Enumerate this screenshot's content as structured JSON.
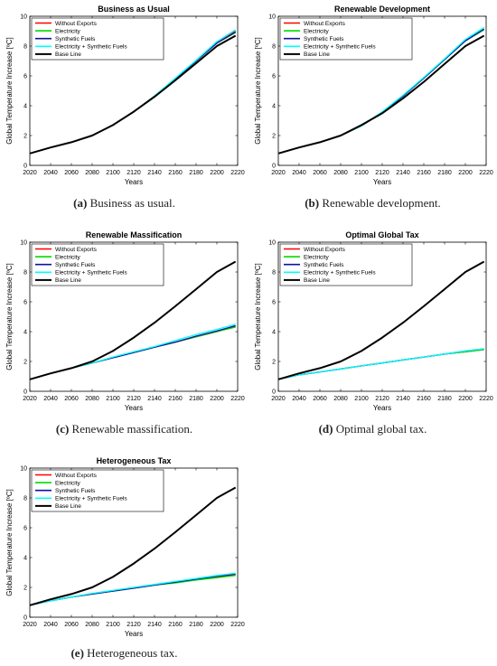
{
  "chart_data": [
    {
      "type": "line",
      "title": "Business as Usual",
      "xlabel": "Years",
      "ylabel": "Global Temperature Increase [ºC]",
      "xlim": [
        2020,
        2220
      ],
      "ylim": [
        0,
        10
      ],
      "xticks": [
        2020,
        2040,
        2060,
        2080,
        2100,
        2120,
        2140,
        2160,
        2180,
        2200,
        2220
      ],
      "yticks": [
        0,
        2,
        4,
        6,
        8,
        10
      ],
      "grid": false,
      "legend": "top-left",
      "caption_letter": "(a)",
      "caption_text": " Business as usual.",
      "x": [
        2020,
        2040,
        2060,
        2080,
        2100,
        2120,
        2140,
        2160,
        2180,
        2200,
        2218
      ],
      "series": [
        {
          "name": "Without Exports",
          "color": "#ff0000",
          "values": [
            0.8,
            1.2,
            1.55,
            2.0,
            2.7,
            3.6,
            4.65,
            5.8,
            7.0,
            8.2,
            9.0
          ]
        },
        {
          "name": "Electricity",
          "color": "#00dd00",
          "values": [
            0.8,
            1.2,
            1.55,
            2.0,
            2.7,
            3.6,
            4.65,
            5.8,
            7.0,
            8.2,
            8.9
          ]
        },
        {
          "name": "Synthetic Fuels",
          "color": "#1010a0",
          "values": [
            0.8,
            1.2,
            1.55,
            2.0,
            2.7,
            3.6,
            4.65,
            5.8,
            7.0,
            8.2,
            8.95
          ]
        },
        {
          "name": "Electricity + Synthetic Fuels",
          "color": "#00ffff",
          "values": [
            0.8,
            1.2,
            1.55,
            2.0,
            2.7,
            3.6,
            4.65,
            5.85,
            7.05,
            8.3,
            9.1
          ]
        },
        {
          "name": "Base Line",
          "color": "#000000",
          "values": [
            0.8,
            1.2,
            1.55,
            2.0,
            2.7,
            3.6,
            4.6,
            5.7,
            6.85,
            8.0,
            8.7
          ]
        }
      ]
    },
    {
      "type": "line",
      "title": "Renewable Development",
      "xlabel": "Years",
      "ylabel": "Global Temperature Increase [ºC]",
      "xlim": [
        2020,
        2220
      ],
      "ylim": [
        0,
        10
      ],
      "xticks": [
        2020,
        2040,
        2060,
        2080,
        2100,
        2120,
        2140,
        2160,
        2180,
        2200,
        2220
      ],
      "yticks": [
        0,
        2,
        4,
        6,
        8,
        10
      ],
      "grid": false,
      "legend": "top-left",
      "caption_letter": "(b)",
      "caption_text": " Renewable development.",
      "x": [
        2020,
        2040,
        2060,
        2080,
        2100,
        2120,
        2140,
        2160,
        2180,
        2200,
        2218
      ],
      "series": [
        {
          "name": "Without Exports",
          "color": "#ff0000",
          "values": [
            0.8,
            1.2,
            1.55,
            2.0,
            2.65,
            3.55,
            4.65,
            5.85,
            7.1,
            8.35,
            9.1
          ]
        },
        {
          "name": "Electricity",
          "color": "#00dd00",
          "values": [
            0.8,
            1.2,
            1.55,
            2.0,
            2.65,
            3.55,
            4.65,
            5.85,
            7.1,
            8.35,
            9.1
          ]
        },
        {
          "name": "Synthetic Fuels",
          "color": "#1010a0",
          "values": [
            0.8,
            1.2,
            1.55,
            2.0,
            2.65,
            3.55,
            4.65,
            5.85,
            7.1,
            8.35,
            9.15
          ]
        },
        {
          "name": "Electricity + Synthetic Fuels",
          "color": "#00ffff",
          "values": [
            0.8,
            1.2,
            1.55,
            2.0,
            2.65,
            3.6,
            4.7,
            5.9,
            7.15,
            8.45,
            9.25
          ]
        },
        {
          "name": "Base Line",
          "color": "#000000",
          "values": [
            0.8,
            1.2,
            1.55,
            2.0,
            2.7,
            3.5,
            4.5,
            5.6,
            6.8,
            8.0,
            8.7
          ]
        }
      ]
    },
    {
      "type": "line",
      "title": "Renewable Massification",
      "xlabel": "Years",
      "ylabel": "Global Temperature Increase [ºC]",
      "xlim": [
        2020,
        2220
      ],
      "ylim": [
        0,
        10
      ],
      "xticks": [
        2020,
        2040,
        2060,
        2080,
        2100,
        2120,
        2140,
        2160,
        2180,
        2200,
        2220
      ],
      "yticks": [
        0,
        2,
        4,
        6,
        8,
        10
      ],
      "grid": false,
      "legend": "top-left",
      "caption_letter": "(c)",
      "caption_text": " Renewable massification.",
      "x": [
        2020,
        2040,
        2060,
        2080,
        2100,
        2120,
        2140,
        2160,
        2180,
        2200,
        2218
      ],
      "series": [
        {
          "name": "Without Exports",
          "color": "#ff0000",
          "values": [
            0.8,
            1.2,
            1.55,
            1.9,
            2.25,
            2.6,
            2.95,
            3.3,
            3.65,
            4.0,
            4.35
          ]
        },
        {
          "name": "Electricity",
          "color": "#00dd00",
          "values": [
            0.8,
            1.2,
            1.55,
            1.9,
            2.25,
            2.6,
            2.95,
            3.3,
            3.65,
            4.0,
            4.3
          ]
        },
        {
          "name": "Synthetic Fuels",
          "color": "#1010a0",
          "values": [
            0.8,
            1.2,
            1.55,
            1.9,
            2.25,
            2.6,
            2.95,
            3.3,
            3.7,
            4.05,
            4.4
          ]
        },
        {
          "name": "Electricity + Synthetic Fuels",
          "color": "#00ffff",
          "values": [
            0.8,
            1.2,
            1.55,
            1.9,
            2.3,
            2.65,
            3.0,
            3.4,
            3.8,
            4.15,
            4.5
          ]
        },
        {
          "name": "Base Line",
          "color": "#000000",
          "values": [
            0.8,
            1.2,
            1.55,
            2.0,
            2.7,
            3.6,
            4.6,
            5.7,
            6.85,
            8.0,
            8.7
          ]
        }
      ]
    },
    {
      "type": "line",
      "title": "Optimal Global Tax",
      "xlabel": "Years",
      "ylabel": "Global Temperature Increase [ºC]",
      "xlim": [
        2020,
        2220
      ],
      "ylim": [
        0,
        10
      ],
      "xticks": [
        2020,
        2040,
        2060,
        2080,
        2100,
        2120,
        2140,
        2160,
        2180,
        2200,
        2220
      ],
      "yticks": [
        0,
        2,
        4,
        6,
        8,
        10
      ],
      "grid": false,
      "legend": "top-left",
      "caption_letter": "(d)",
      "caption_text": " Optimal global tax.",
      "x": [
        2020,
        2040,
        2060,
        2080,
        2100,
        2120,
        2140,
        2160,
        2180,
        2200,
        2218
      ],
      "series": [
        {
          "name": "Without Exports",
          "color": "#ff0000",
          "values": [
            0.8,
            1.1,
            1.3,
            1.5,
            1.7,
            1.9,
            2.1,
            2.3,
            2.5,
            2.65,
            2.8
          ]
        },
        {
          "name": "Electricity",
          "color": "#00dd00",
          "values": [
            0.8,
            1.1,
            1.3,
            1.5,
            1.7,
            1.9,
            2.1,
            2.3,
            2.5,
            2.65,
            2.8
          ]
        },
        {
          "name": "Synthetic Fuels",
          "color": "#1010a0",
          "values": [
            0.8,
            1.1,
            1.3,
            1.5,
            1.7,
            1.9,
            2.1,
            2.3,
            2.5,
            2.7,
            2.85
          ]
        },
        {
          "name": "Electricity + Synthetic Fuels",
          "color": "#00ffff",
          "values": [
            0.8,
            1.1,
            1.3,
            1.5,
            1.7,
            1.9,
            2.1,
            2.3,
            2.5,
            2.7,
            2.85
          ]
        },
        {
          "name": "Base Line",
          "color": "#000000",
          "values": [
            0.8,
            1.2,
            1.55,
            2.0,
            2.7,
            3.6,
            4.6,
            5.7,
            6.85,
            8.0,
            8.7
          ]
        }
      ]
    },
    {
      "type": "line",
      "title": "Heterogeneous Tax",
      "xlabel": "Years",
      "ylabel": "Global Temperature Increase [ºC]",
      "xlim": [
        2020,
        2220
      ],
      "ylim": [
        0,
        10
      ],
      "xticks": [
        2020,
        2040,
        2060,
        2080,
        2100,
        2120,
        2140,
        2160,
        2180,
        2200,
        2220
      ],
      "yticks": [
        0,
        2,
        4,
        6,
        8,
        10
      ],
      "grid": false,
      "legend": "top-left",
      "caption_letter": "(e)",
      "caption_text": " Heterogeneous tax.",
      "x": [
        2020,
        2040,
        2060,
        2080,
        2100,
        2120,
        2140,
        2160,
        2180,
        2200,
        2218
      ],
      "series": [
        {
          "name": "Without Exports",
          "color": "#ff0000",
          "values": [
            0.8,
            1.1,
            1.35,
            1.55,
            1.75,
            1.95,
            2.15,
            2.35,
            2.55,
            2.7,
            2.85
          ]
        },
        {
          "name": "Electricity",
          "color": "#00dd00",
          "values": [
            0.8,
            1.1,
            1.35,
            1.55,
            1.75,
            1.95,
            2.15,
            2.3,
            2.5,
            2.65,
            2.8
          ]
        },
        {
          "name": "Synthetic Fuels",
          "color": "#1010a0",
          "values": [
            0.8,
            1.1,
            1.35,
            1.55,
            1.75,
            1.95,
            2.15,
            2.35,
            2.55,
            2.75,
            2.9
          ]
        },
        {
          "name": "Electricity + Synthetic Fuels",
          "color": "#00ffff",
          "values": [
            0.8,
            1.1,
            1.35,
            1.6,
            1.8,
            2.0,
            2.2,
            2.4,
            2.6,
            2.8,
            2.95
          ]
        },
        {
          "name": "Base Line",
          "color": "#000000",
          "values": [
            0.8,
            1.2,
            1.55,
            2.0,
            2.7,
            3.6,
            4.6,
            5.7,
            6.85,
            8.0,
            8.7
          ]
        }
      ]
    }
  ]
}
